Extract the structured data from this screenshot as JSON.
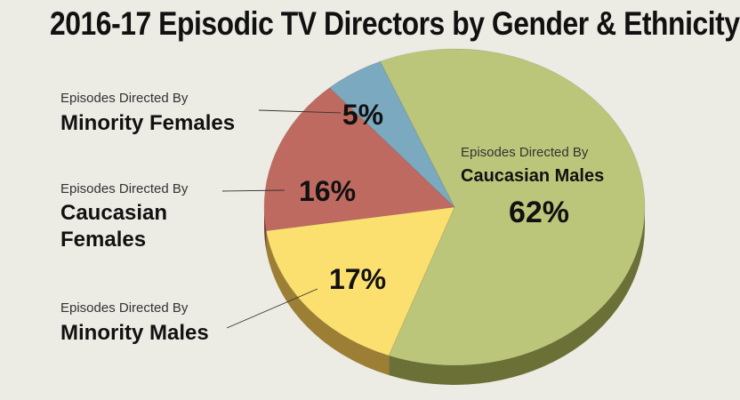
{
  "chart_data": {
    "type": "pie",
    "title": "2016-17 Episodic TV Directors by Gender & Ethnicity",
    "slices": [
      {
        "label_top": "Episodes Directed By",
        "label": "Caucasian Males",
        "value": 62,
        "pct_text": "62%",
        "color": "#bcc67a",
        "side": "#6b7036"
      },
      {
        "label_top": "Episodes Directed By",
        "label": "Minority Males",
        "value": 17,
        "pct_text": "17%",
        "color": "#fbdf6f",
        "side": "#9c7f35"
      },
      {
        "label_top": "Episodes Directed By",
        "label": "Caucasian Females",
        "label_line1": "Caucasian",
        "label_line2": "Females",
        "value": 16,
        "pct_text": "16%",
        "color": "#bf6a60",
        "side": "#7a3a32"
      },
      {
        "label_top": "Episodes Directed By",
        "label": "Minority Females",
        "value": 5,
        "pct_text": "5%",
        "color": "#7ba9c0",
        "side": "#3f6a80"
      }
    ]
  }
}
